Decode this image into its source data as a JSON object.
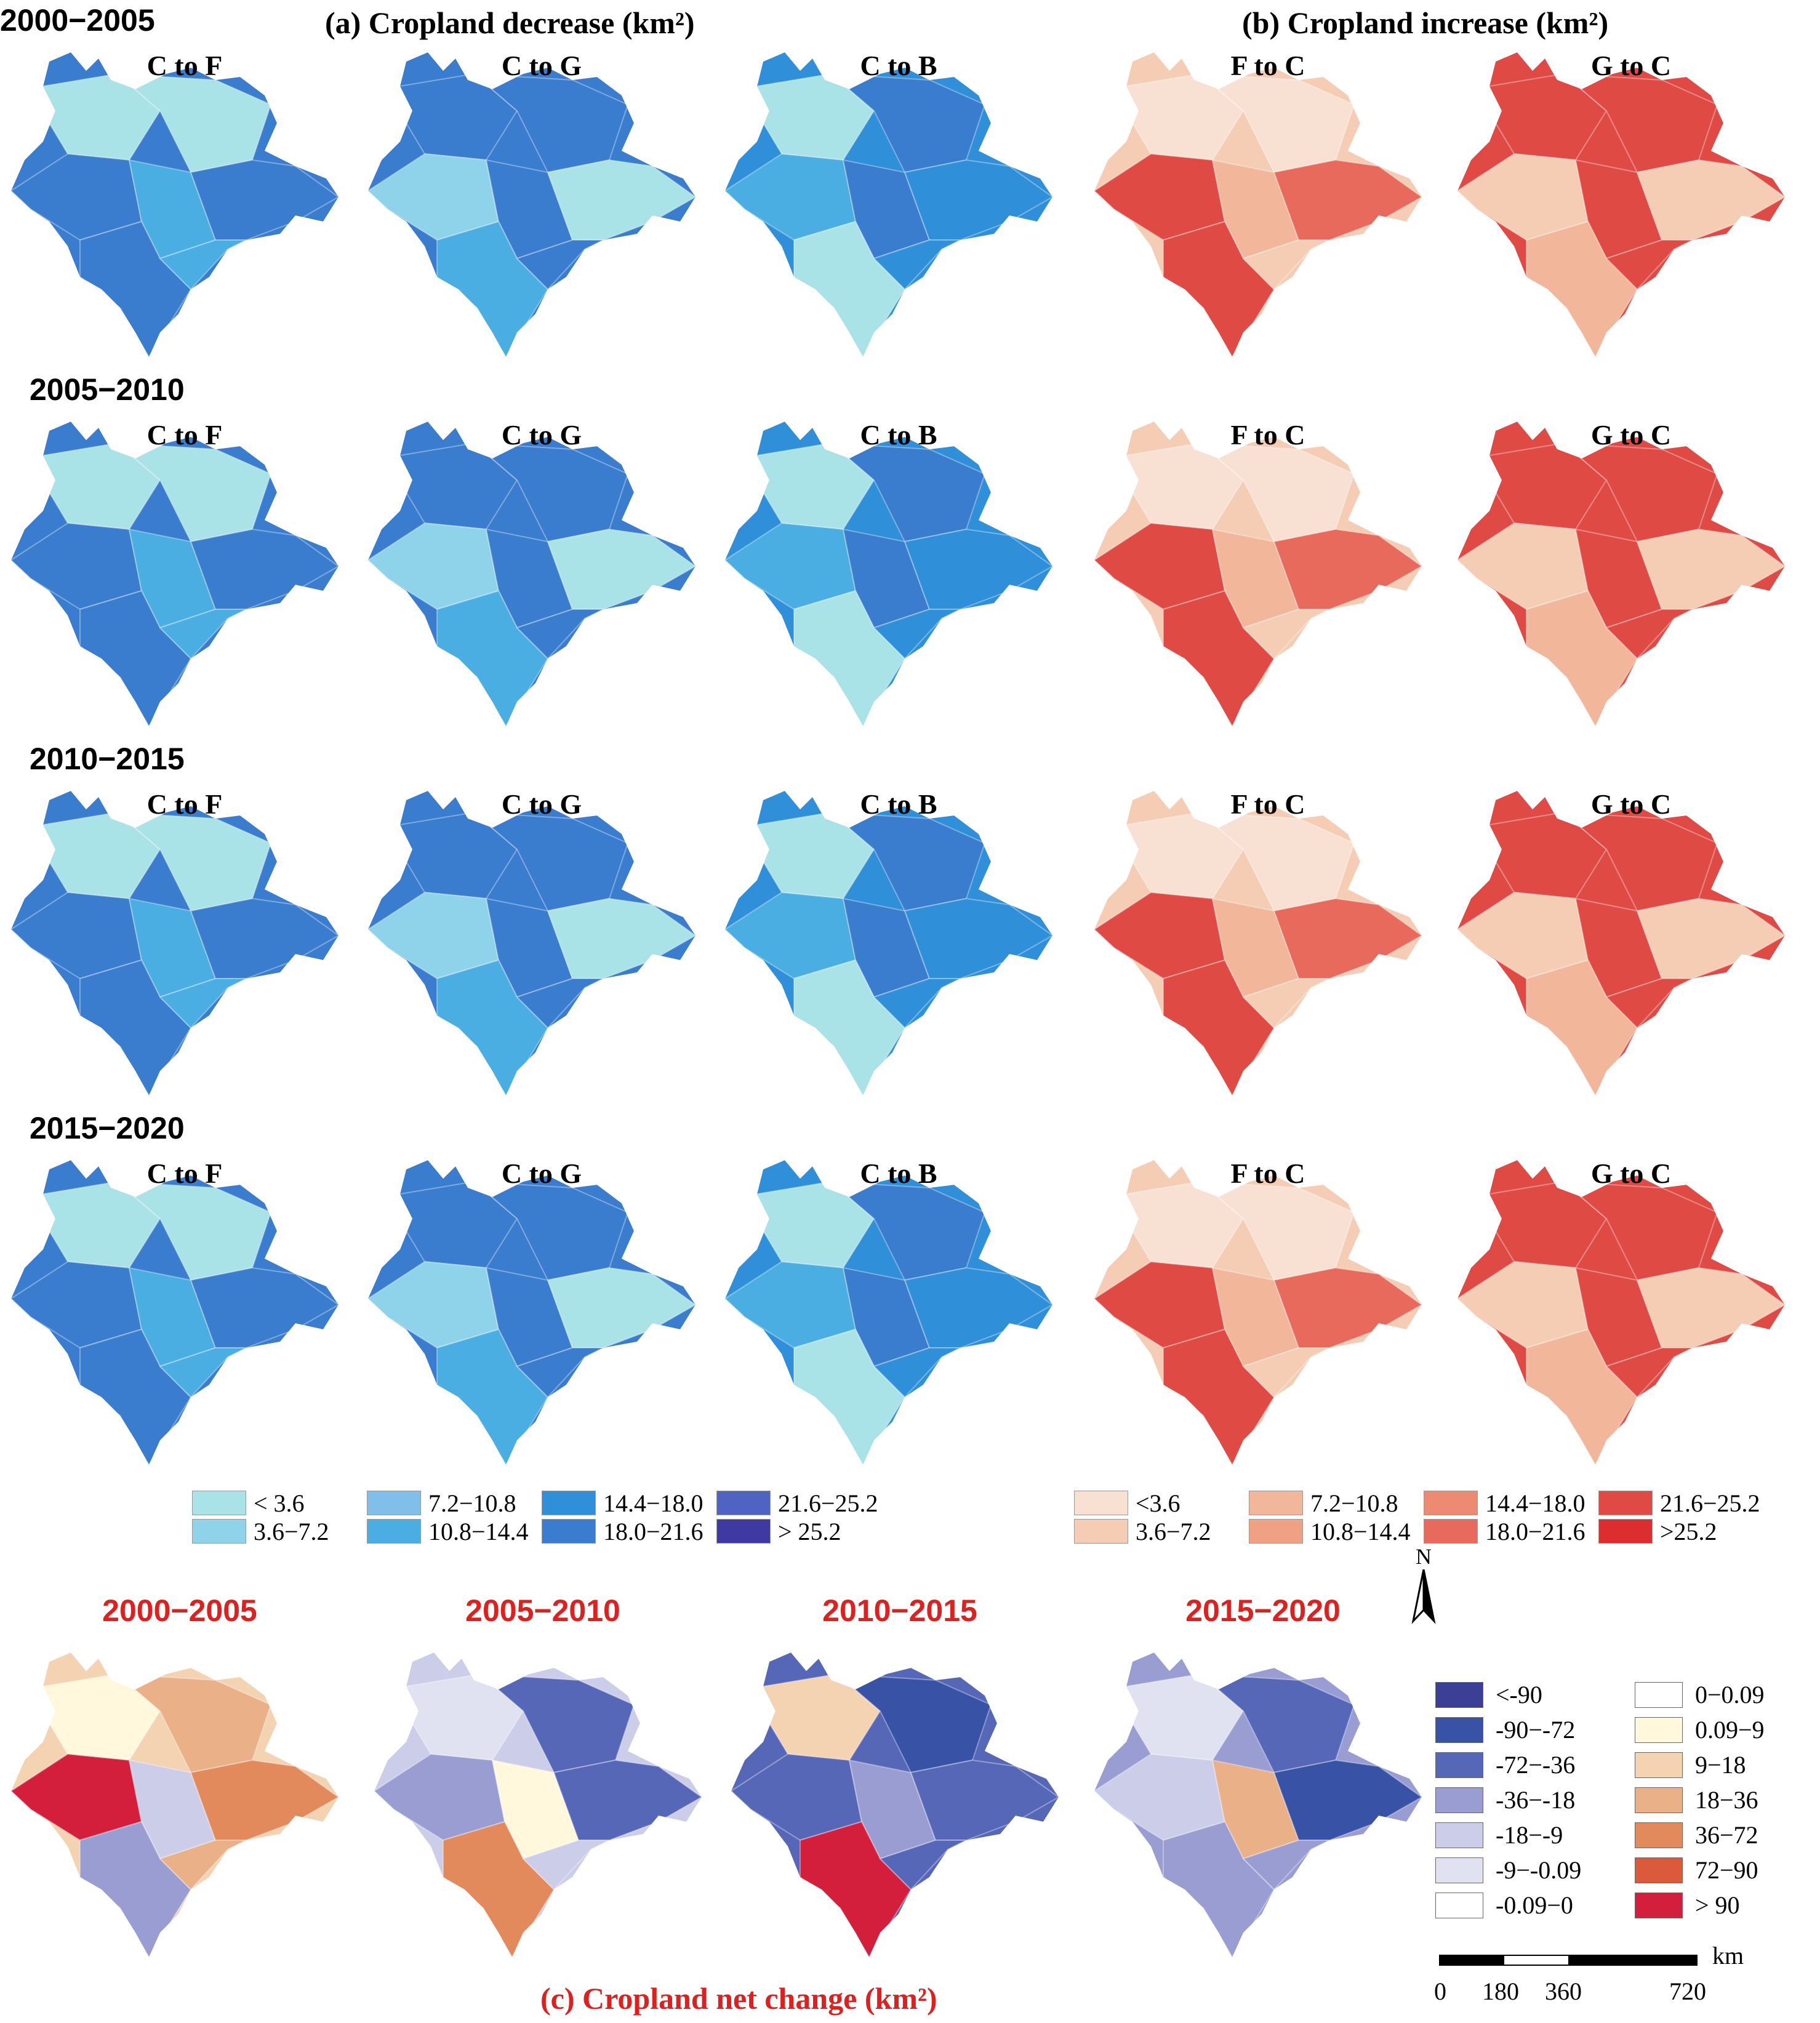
{
  "title_decrease": "(a) Cropland decrease (km²)",
  "title_increase": "(b) Cropland increase (km²)",
  "title_net": "(c) Cropland net change (km²)",
  "periods": [
    "2000−2005",
    "2005−2010",
    "2010−2015",
    "2015−2020"
  ],
  "map_labels": [
    "C to F",
    "C to G",
    "C to B",
    "F to C",
    "G to C"
  ],
  "legend_decrease": [
    {
      "label": "< 3.6",
      "color": "#a9e3e8"
    },
    {
      "label": "3.6−7.2",
      "color": "#8ed3ea"
    },
    {
      "label": "7.2−10.8",
      "color": "#7fbfe9"
    },
    {
      "label": "10.8−14.4",
      "color": "#4aaee3"
    },
    {
      "label": "14.4−18.0",
      "color": "#2f8fd8"
    },
    {
      "label": "18.0−21.6",
      "color": "#3a7cce"
    },
    {
      "label": "21.6−25.2",
      "color": "#4f63c2"
    },
    {
      "label": "> 25.2",
      "color": "#3e3aa1"
    }
  ],
  "legend_increase": [
    {
      "label": "<3.6",
      "color": "#f8e1d3"
    },
    {
      "label": "3.6−7.2",
      "color": "#f4cdb4"
    },
    {
      "label": "7.2−10.8",
      "color": "#f2b79a"
    },
    {
      "label": "10.8−14.4",
      "color": "#f0a083"
    },
    {
      "label": "14.4−18.0",
      "color": "#ec8a72"
    },
    {
      "label": "18.0−21.6",
      "color": "#e86a5c"
    },
    {
      "label": "21.6−25.2",
      "color": "#e04a45"
    },
    {
      "label": ">25.2",
      "color": "#dc2e2e"
    }
  ],
  "legend_net": [
    {
      "label": "<-90",
      "color": "#3b3f96"
    },
    {
      "label": "-90−-72",
      "color": "#3852a6"
    },
    {
      "label": "-72−-36",
      "color": "#5767b8"
    },
    {
      "label": "-36−-18",
      "color": "#9a9dd2"
    },
    {
      "label": "-18−-9",
      "color": "#cccde9"
    },
    {
      "label": "-9−-0.09",
      "color": "#e1e2f1"
    },
    {
      "label": "-0.09−0",
      "color": "#ffffff"
    },
    {
      "label": "0−0.09",
      "color": "#ffffff"
    },
    {
      "label": "0.09−9",
      "color": "#fff8dc"
    },
    {
      "label": "9−18",
      "color": "#f4d3b2"
    },
    {
      "label": "18−36",
      "color": "#eab088"
    },
    {
      "label": "36−72",
      "color": "#e38a5c"
    },
    {
      "label": "72−90",
      "color": "#dc5a3c"
    },
    {
      "label": "> 90",
      "color": "#d41f3c"
    }
  ],
  "north_label": "N",
  "scale": {
    "unit": "km",
    "ticks": [
      "0",
      "180",
      "360",
      "720"
    ]
  }
}
